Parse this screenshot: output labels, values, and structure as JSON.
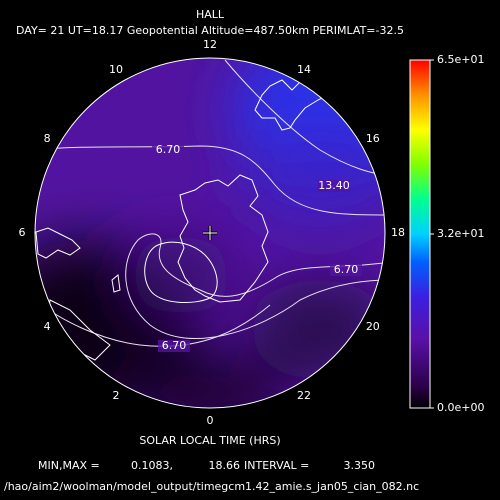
{
  "chart_data": {
    "type": "polar-contour",
    "title": "HALL",
    "subtitle": "DAY= 21 UT=18.17 Geopotential Altitude=487.50km PERIMLAT=-32.5",
    "xlabel": "SOLAR LOCAL TIME (HRS)",
    "hour_ticks": [
      12,
      14,
      16,
      18,
      20,
      22,
      0,
      2,
      4,
      6,
      8,
      10
    ],
    "contour_labels": [
      {
        "value": 6.7,
        "label": "6.70"
      },
      {
        "value": 13.4,
        "label": "13.40"
      },
      {
        "value": 6.7,
        "label": "6.70"
      },
      {
        "value": 6.7,
        "label": "6.70"
      }
    ],
    "clim": [
      0,
      65
    ],
    "cticks": [
      {
        "value": 0,
        "label": "0.0e+00"
      },
      {
        "value": 32.5,
        "label": "3.2e+01"
      },
      {
        "value": 65,
        "label": "6.5e+01"
      }
    ],
    "minmax_label": "MIN,MAX =",
    "min": {
      "value": 0.1083,
      "label": "0.1083,"
    },
    "max": 18.66,
    "interval_label": "INTERVAL =",
    "interval": {
      "value": 3.35,
      "label": "3.350"
    },
    "file": "/hao/aim2/woolman/model_output/timegcm1.42_amie.s_jan05_cian_082.nc"
  }
}
